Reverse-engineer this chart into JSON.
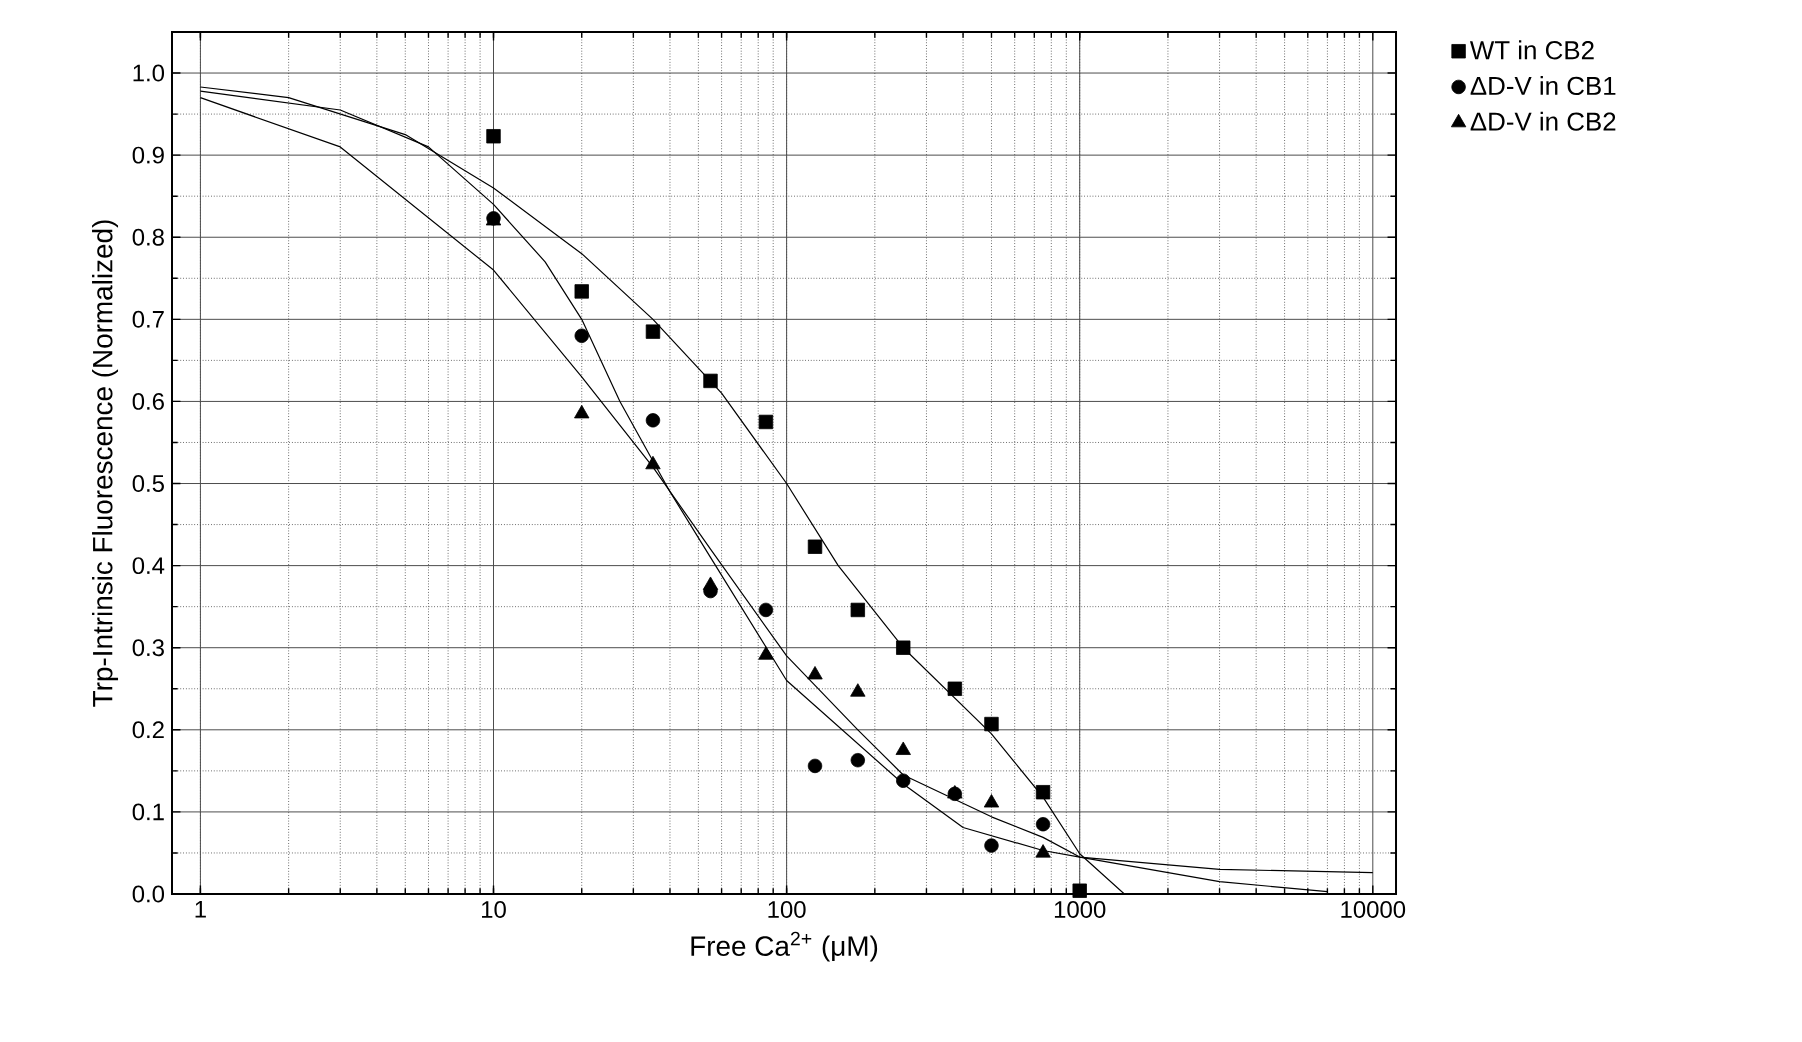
{
  "chart_data": {
    "type": "scatter",
    "xlabel": "Free Ca$^{2+}$ (μM)",
    "ylabel": "Trp-Intrinsic Fluorescence (Normalized)",
    "log": "x",
    "grid": true,
    "legend": "top right",
    "xlim": [
      0.8,
      12000
    ],
    "xticks": [
      1,
      10,
      100,
      1000,
      10000
    ],
    "ylim": [
      0,
      1.05
    ],
    "yticks": [
      {
        "value": 0,
        "label": "0.0"
      },
      {
        "value": 0.1,
        "label": "0.1"
      },
      {
        "value": 0.2,
        "label": "0.2"
      },
      {
        "value": 0.3,
        "label": "0.3"
      },
      {
        "value": 0.4,
        "label": "0.4"
      },
      {
        "value": 0.5,
        "label": "0.5"
      },
      {
        "value": 0.6,
        "label": "0.6"
      },
      {
        "value": 0.7,
        "label": "0.7"
      },
      {
        "value": 0.8,
        "label": "0.8"
      },
      {
        "value": 0.9,
        "label": "0.9"
      },
      {
        "value": 1.0,
        "label": "1.0"
      }
    ],
    "series": [
      {
        "name": "WT in CB2",
        "marker": "square",
        "color": "#000000",
        "x": [
          10,
          20,
          35,
          55,
          85,
          125,
          175,
          250,
          375,
          500,
          750,
          1000
        ],
        "values": [
          0.923,
          0.734,
          0.685,
          0.625,
          0.575,
          0.423,
          0.346,
          0.3,
          0.25,
          0.207,
          0.124,
          0.004
        ]
      },
      {
        "name": "ΔD-V in CB1",
        "marker": "circle",
        "color": "#000000",
        "x": [
          10,
          20,
          35,
          55,
          85,
          125,
          175,
          250,
          375,
          500,
          750
        ],
        "values": [
          0.823,
          0.68,
          0.577,
          0.369,
          0.346,
          0.156,
          0.163,
          0.138,
          0.122,
          0.059,
          0.085
        ]
      },
      {
        "name": "ΔD-V in CB2",
        "marker": "triangle",
        "color": "#000000",
        "x": [
          10,
          20,
          35,
          55,
          85,
          125,
          175,
          250,
          375,
          500,
          750
        ],
        "values": [
          0.82,
          0.585,
          0.523,
          0.376,
          0.291,
          0.267,
          0.246,
          0.175,
          0.122,
          0.111,
          0.05
        ]
      },
      {
        "type": "line",
        "marker": "none",
        "color": "#000000",
        "x": [
          1,
          2,
          5,
          10,
          20,
          35,
          60,
          100,
          150,
          250,
          500,
          750,
          1000,
          1420
        ],
        "values": [
          0.983,
          0.97,
          0.925,
          0.86,
          0.78,
          0.7,
          0.61,
          0.5,
          0.4,
          0.3,
          0.195,
          0.118,
          0.049,
          0
        ]
      },
      {
        "type": "line",
        "marker": "none",
        "color": "#000000",
        "x": [
          1,
          3,
          6,
          10,
          15,
          20,
          27,
          40,
          55,
          100,
          250,
          400,
          750,
          1000,
          3000,
          10000
        ],
        "values": [
          0.978,
          0.955,
          0.91,
          0.84,
          0.77,
          0.7,
          0.6,
          0.49,
          0.41,
          0.26,
          0.134,
          0.081,
          0.053,
          0.045,
          0.03,
          0.026
        ]
      },
      {
        "type": "line",
        "marker": "none",
        "color": "#000000",
        "x": [
          1,
          3,
          10,
          20,
          35,
          55,
          100,
          175,
          250,
          500,
          750,
          1000,
          3000,
          7000
        ],
        "values": [
          0.97,
          0.91,
          0.76,
          0.63,
          0.52,
          0.42,
          0.29,
          0.2,
          0.145,
          0.094,
          0.069,
          0.045,
          0.015,
          0.003
        ]
      }
    ]
  }
}
